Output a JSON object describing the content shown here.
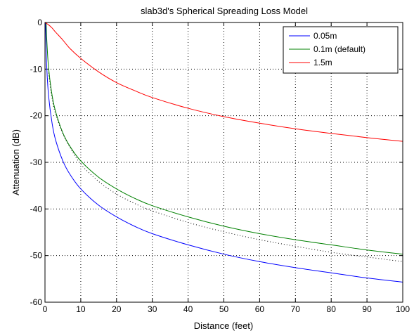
{
  "chart_data": {
    "type": "line",
    "title": "slab3d's Spherical Spreading Loss Model",
    "xlabel": "Distance (feet)",
    "ylabel": "Attenuation (dB)",
    "xlim": [
      0,
      100
    ],
    "ylim": [
      -60,
      0
    ],
    "xticks": [
      0,
      10,
      20,
      30,
      40,
      50,
      60,
      70,
      80,
      90,
      100
    ],
    "yticks": [
      0,
      -10,
      -20,
      -30,
      -40,
      -50,
      -60
    ],
    "grid": true,
    "legend_position": "top-right",
    "series": [
      {
        "name": "0.05m",
        "color": "#0000ff",
        "style": "solid",
        "x": [
          0.164,
          0.3,
          0.5,
          1,
          2,
          3,
          5,
          7,
          10,
          15,
          20,
          25,
          30,
          40,
          50,
          60,
          70,
          80,
          90,
          100
        ],
        "y": [
          0,
          -5.2,
          -9.7,
          -15.7,
          -21.7,
          -25.3,
          -29.7,
          -32.6,
          -35.7,
          -39.2,
          -41.7,
          -43.7,
          -45.3,
          -47.7,
          -49.7,
          -51.3,
          -52.6,
          -53.7,
          -54.8,
          -55.7
        ]
      },
      {
        "name": "0.1m (default)",
        "color": "#008000",
        "style": "solid",
        "x": [
          0.328,
          0.5,
          1,
          2,
          3,
          5,
          7,
          10,
          15,
          20,
          25,
          30,
          40,
          50,
          60,
          70,
          80,
          90,
          100
        ],
        "y": [
          0,
          -3.7,
          -9.7,
          -15.7,
          -19.2,
          -23.7,
          -26.6,
          -29.7,
          -33.2,
          -35.7,
          -37.7,
          -39.3,
          -41.7,
          -43.7,
          -45.3,
          -46.6,
          -47.7,
          -48.8,
          -49.7
        ]
      },
      {
        "name": "1.5m",
        "color": "#ff0000",
        "style": "solid",
        "x": [
          0,
          1,
          2,
          3,
          4.92,
          7,
          10,
          15,
          20,
          25,
          30,
          40,
          50,
          60,
          70,
          80,
          90,
          100
        ],
        "y": [
          0,
          -0.5,
          -1.2,
          -2.1,
          -3.7,
          -5.6,
          -7.7,
          -10.6,
          -12.9,
          -14.6,
          -16.1,
          -18.4,
          -20.2,
          -21.6,
          -22.8,
          -23.8,
          -24.7,
          -25.5
        ]
      },
      {
        "color": "#000000",
        "style": "dotted",
        "x": [
          1,
          2,
          3,
          5,
          7,
          10,
          15,
          20,
          25,
          30,
          40,
          50,
          60,
          70,
          80,
          90,
          100
        ],
        "y": [
          -10.8,
          -16.4,
          -19.7,
          -23.9,
          -26.8,
          -30.4,
          -34.1,
          -36.8,
          -38.8,
          -40.4,
          -42.9,
          -44.9,
          -46.6,
          -48.0,
          -49.3,
          -50.3,
          -51.3
        ]
      }
    ]
  }
}
